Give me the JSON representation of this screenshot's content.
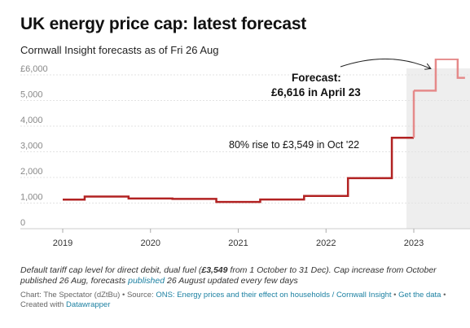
{
  "title": "UK energy price cap: latest forecast",
  "subtitle": "Cornwall Insight forecasts as of Fri 26 Aug",
  "chart_data": {
    "type": "line",
    "style": "step",
    "y_ticks": [
      "£6,000",
      "5,000",
      "4,000",
      "3,000",
      "2,000",
      "1,000",
      "0"
    ],
    "ylim": [
      0,
      6000
    ],
    "x_ticks": [
      "2019",
      "2020",
      "2021",
      "2022",
      "2023"
    ],
    "xlim": [
      2018.93,
      2023.64
    ],
    "grid": true,
    "forecast_shading_start": "2022-12",
    "series": [
      {
        "segment": "actual",
        "color": "#b22222",
        "points": [
          [
            "2019-01",
            1136
          ],
          [
            "2019-04",
            1254
          ],
          [
            "2019-10",
            1179
          ],
          [
            "2020-04",
            1162
          ],
          [
            "2020-10",
            1042
          ],
          [
            "2021-04",
            1138
          ],
          [
            "2021-10",
            1277
          ],
          [
            "2022-04",
            1971
          ],
          [
            "2022-10",
            3549
          ],
          [
            "2023-01",
            3549
          ]
        ]
      },
      {
        "segment": "forecast",
        "color": "#e58a8a",
        "points": [
          [
            "2023-01",
            5386
          ],
          [
            "2023-04",
            6616
          ],
          [
            "2023-07",
            5885
          ],
          [
            "2023-08",
            5885
          ]
        ]
      }
    ],
    "annotations": {
      "rise_label": "80% rise to £3,549 in Oct '22",
      "forecast_line1": "Forecast:",
      "forecast_line2": "£6,616 in April 23"
    }
  },
  "note": {
    "p1": "Default tariff cap level for direct debit, dual fuel (",
    "bold": "£3,549",
    "p2": " from 1 October to 31 Dec). Cap increase from October published 26 Aug, forecasts ",
    "link": "published",
    "p3": " 26 August updated every few days"
  },
  "credits": {
    "chart": "Chart: The Spectator (dZtBu)",
    "sep": " • ",
    "source_label": "Source: ",
    "source": "ONS: Energy prices and their effect on households / Cornwall Insight",
    "get_data": "Get the data",
    "created_with": "Created with ",
    "tool": "Datawrapper"
  },
  "colors": {
    "actual": "#b22222",
    "forecast": "#e58a8a",
    "shade": "#eeeeee",
    "link": "#1d81a2"
  }
}
